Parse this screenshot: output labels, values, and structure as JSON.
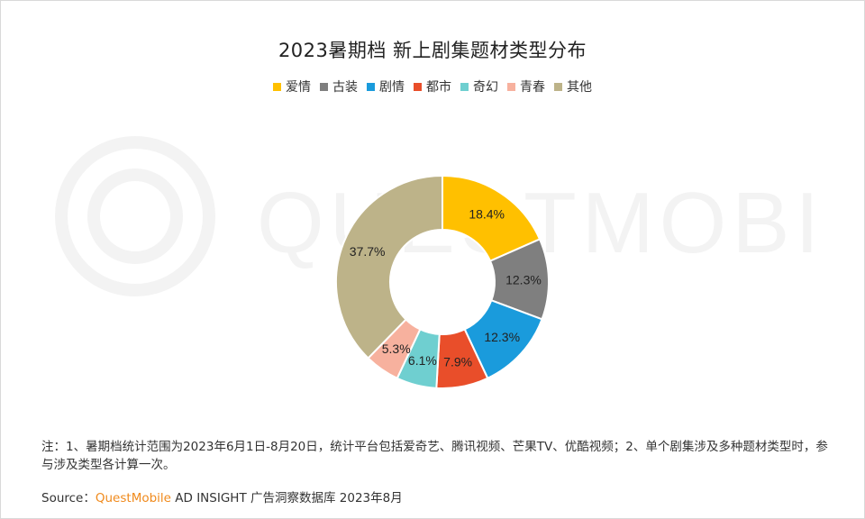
{
  "chart_data": {
    "type": "pie",
    "title": "2023暑期档 新上剧集题材类型分布",
    "donut": true,
    "legend_position": "top",
    "categories": [
      "爱情",
      "古装",
      "剧情",
      "都市",
      "奇幻",
      "青春",
      "其他"
    ],
    "values": [
      18.4,
      12.3,
      12.3,
      7.9,
      6.1,
      5.3,
      37.7
    ],
    "value_labels": [
      "18.4%",
      "12.3%",
      "12.3%",
      "7.9%",
      "6.1%",
      "5.3%",
      "37.7%"
    ],
    "colors": [
      "#FFC000",
      "#7F7F7F",
      "#1A9BDC",
      "#E94E2A",
      "#6FCFD0",
      "#F7B19E",
      "#BDB389"
    ]
  },
  "watermark": {
    "text": "QUESTMOBILE"
  },
  "footer": {
    "note": "注：1、暑期档统计范围为2023年6月1日-8月20日，统计平台包括爱奇艺、腾讯视频、芒果TV、优酷视频；2、单个剧集涉及多种题材类型时，参与涉及类型各计算一次。",
    "source_prefix": "Source：",
    "source_brand": "QuestMobile",
    "source_rest": " AD INSIGHT 广告洞察数据库 2023年8月"
  }
}
